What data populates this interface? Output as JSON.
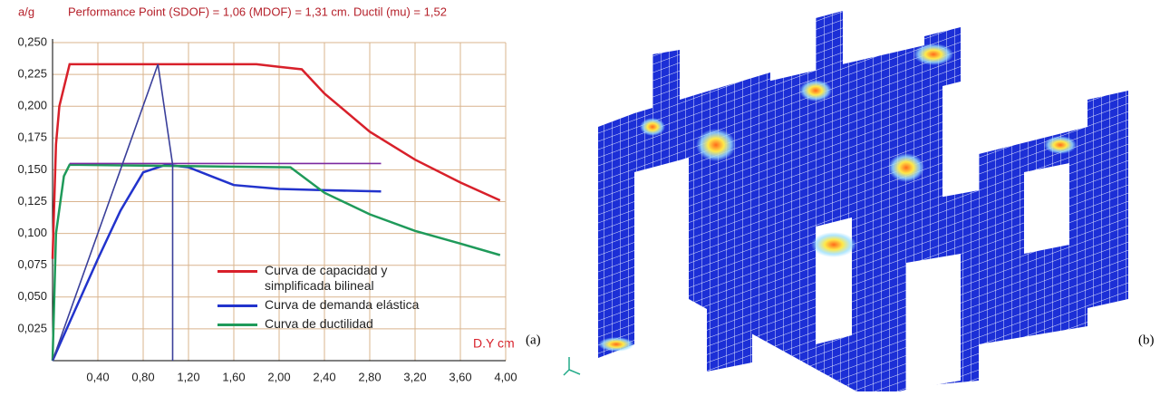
{
  "chart_data": {
    "type": "line",
    "title": "Performance Point (SDOF) = 1,06 (MDOF) = 1,31 cm.  Ductil (mu) = 1,52",
    "y_label": "a/g",
    "x_label": "D.Y cm",
    "xlim": [
      0,
      4.0
    ],
    "ylim": [
      0,
      0.25
    ],
    "xticks": [
      {
        "value": 0.4,
        "label": "0,40"
      },
      {
        "value": 0.8,
        "label": "0,80"
      },
      {
        "value": 1.2,
        "label": "1,20"
      },
      {
        "value": 1.6,
        "label": "1,60"
      },
      {
        "value": 2.0,
        "label": "2,00"
      },
      {
        "value": 2.4,
        "label": "2,40"
      },
      {
        "value": 2.8,
        "label": "2,80"
      },
      {
        "value": 3.2,
        "label": "3,20"
      },
      {
        "value": 3.6,
        "label": "3,60"
      },
      {
        "value": 4.0,
        "label": "4,00"
      }
    ],
    "yticks": [
      {
        "value": 0.025,
        "label": "0,025"
      },
      {
        "value": 0.05,
        "label": "0,050"
      },
      {
        "value": 0.075,
        "label": "0,075"
      },
      {
        "value": 0.1,
        "label": "0,100"
      },
      {
        "value": 0.125,
        "label": "0,125"
      },
      {
        "value": 0.15,
        "label": "0,150"
      },
      {
        "value": 0.175,
        "label": "0,175"
      },
      {
        "value": 0.2,
        "label": "0,200"
      },
      {
        "value": 0.225,
        "label": "0,225"
      },
      {
        "value": 0.25,
        "label": "0,250"
      }
    ],
    "grid": true,
    "series": [
      {
        "name": "Curva de capacidad y simplificada bilineal",
        "color": "#d8202a",
        "x": [
          0,
          0.03,
          0.06,
          0.15,
          1.8,
          2.0,
          2.2,
          2.4,
          2.8,
          3.2,
          3.6,
          3.95
        ],
        "values": [
          0.08,
          0.17,
          0.2,
          0.233,
          0.233,
          0.231,
          0.229,
          0.21,
          0.18,
          0.158,
          0.14,
          0.126
        ]
      },
      {
        "name": "Curva de demanda elástica",
        "color": "#2233cc",
        "x": [
          0,
          0.2,
          0.4,
          0.6,
          0.8,
          1.0,
          1.2,
          1.4,
          1.6,
          2.0,
          2.4,
          2.9
        ],
        "values": [
          0,
          0.04,
          0.08,
          0.118,
          0.148,
          0.154,
          0.152,
          0.145,
          0.138,
          0.135,
          0.134,
          0.133
        ]
      },
      {
        "name": "Curva de ductilidad",
        "color": "#1f9a5a",
        "x": [
          0,
          0.03,
          0.1,
          0.15,
          2.1,
          2.4,
          2.8,
          3.2,
          3.6,
          3.95
        ],
        "values": [
          0,
          0.1,
          0.145,
          0.154,
          0.152,
          0.132,
          0.115,
          0.102,
          0.092,
          0.083
        ]
      },
      {
        "color": "#7a2aa0",
        "x": [
          0.15,
          2.9
        ],
        "values": [
          0.155,
          0.155
        ]
      },
      {
        "color": "#3a3f9a",
        "x": [
          0,
          0.93,
          1.06
        ],
        "values": [
          0,
          0.233,
          0.154
        ]
      },
      {
        "color": "#3a3f9a",
        "x": [
          1.06,
          1.06
        ],
        "values": [
          0,
          0.154
        ]
      }
    ],
    "legend": "lower-right"
  },
  "figure_labels": [
    "(a)",
    "(b)"
  ]
}
